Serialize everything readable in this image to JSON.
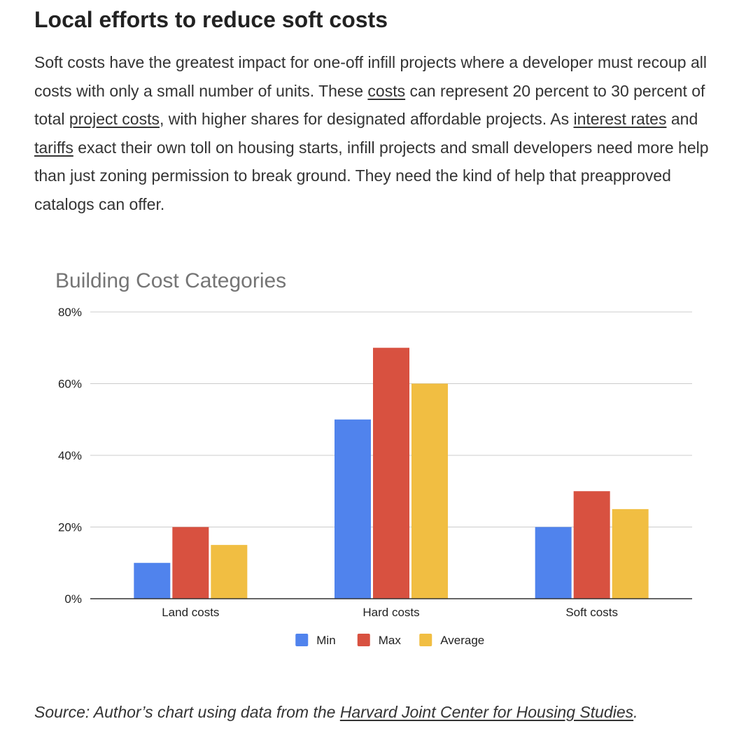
{
  "article": {
    "heading": "Local efforts to reduce soft costs",
    "paragraph": {
      "t1": "Soft costs have the greatest impact for one-off infill projects where a developer must recoup all costs with only a small number of units. These ",
      "link_costs": "costs",
      "t2": " can represent 20 percent to 30 percent of total ",
      "link_project_costs": "project costs",
      "t3": ", with higher shares for designated affordable projects. As ",
      "link_interest_rates": "interest rates",
      "t4": " and ",
      "link_tariffs": "tariffs",
      "t5": " exact their own toll on housing starts, infill projects and small developers need more help than just zoning permission to break ground. They need the kind of help that preapproved catalogs can offer."
    },
    "source": {
      "prefix": "Source: Author’s chart using data from the ",
      "link": "Harvard Joint Center for Housing Studies",
      "suffix": "."
    }
  },
  "chart_data": {
    "type": "bar",
    "title": "Building Cost Categories",
    "xlabel": "",
    "ylabel": "",
    "categories": [
      "Land costs",
      "Hard costs",
      "Soft costs"
    ],
    "series": [
      {
        "name": "Min",
        "values": [
          10,
          50,
          20
        ],
        "color": "#5083ed"
      },
      {
        "name": "Max",
        "values": [
          20,
          70,
          30
        ],
        "color": "#d85140"
      },
      {
        "name": "Average",
        "values": [
          15,
          60,
          25
        ],
        "color": "#f1be42"
      }
    ],
    "yticks": [
      "0%",
      "20%",
      "40%",
      "60%",
      "80%"
    ],
    "ylim": [
      0,
      80
    ],
    "grid": true,
    "legend_position": "bottom"
  }
}
